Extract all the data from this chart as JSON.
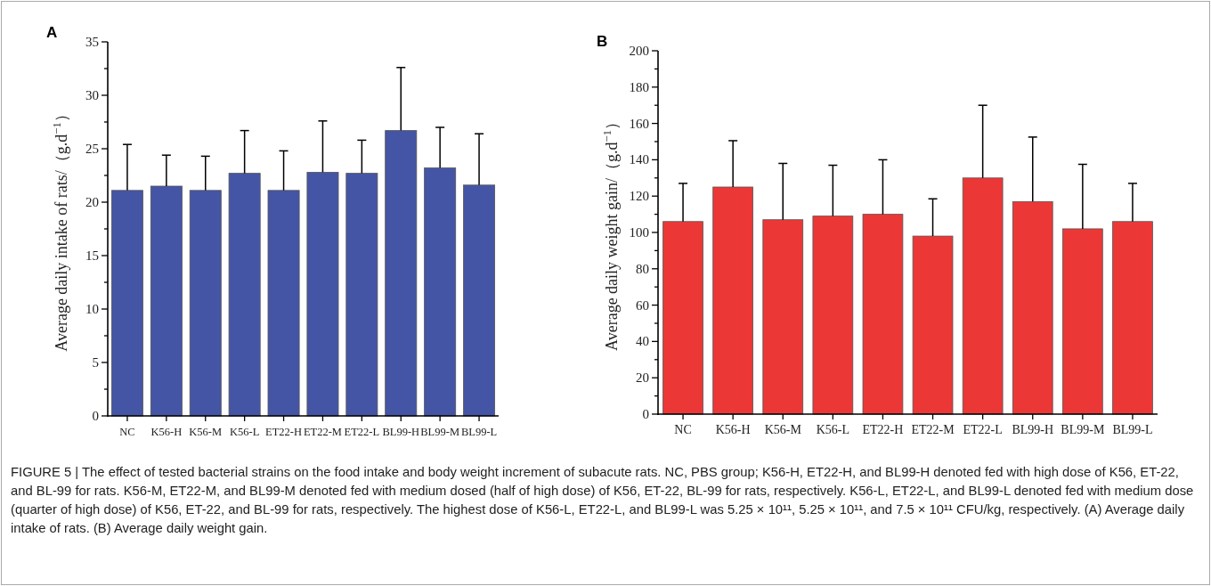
{
  "chart_data": [
    {
      "type": "bar",
      "title": "A",
      "ylabel": "Average daily intake of rats/（g.d$^{−1}$）",
      "categories": [
        "NC",
        "K56-H",
        "K56-M",
        "K56-L",
        "ET22-H",
        "ET22-M",
        "ET22-L",
        "BL99-H",
        "BL99-M",
        "BL99-L"
      ],
      "values": [
        21.1,
        21.5,
        21.1,
        22.7,
        21.1,
        22.8,
        22.7,
        26.7,
        23.2,
        21.6
      ],
      "errors": [
        [
          21.1,
          25.4
        ],
        [
          21.5,
          24.4
        ],
        [
          21.1,
          24.3
        ],
        [
          22.7,
          26.7
        ],
        [
          21.1,
          24.8
        ],
        [
          22.8,
          27.6
        ],
        [
          22.7,
          25.8
        ],
        [
          26.7,
          32.6
        ],
        [
          23.2,
          27.0
        ],
        [
          21.6,
          26.4
        ]
      ],
      "color": "#4555a5",
      "ylim": [
        0,
        35
      ],
      "yticks": [
        0,
        5,
        10,
        15,
        20,
        25,
        30,
        35
      ],
      "grid": false,
      "annotations": [
        "FIGURE 5 | The effect of tested bacterial strains on the food intake and body weight increment of subacute rats. NC, PBS group; K56-H, ET22-H, and BL99-H denoted fed with high dose of K56, ET-22, and BL-99 for rats. K56-M, ET22-M, and BL99-M denoted fed with medium dosed (half of high dose) of K56, ET-22, BL-99 for rats, respectively. K56-L, ET22-L, and BL99-L denoted fed with medium dose (quarter of high dose) of K56, ET-22, and BL-99 for rats, respectively. The highest dose of K56-L, ET22-L, and BL99-L was 5.25 × 10¹¹, 5.25 × 10¹¹, and 7.5 × 10¹¹ CFU/kg, respectively. (A) Average daily intake of rats. (B) Average daily weight gain."
      ]
    },
    {
      "type": "bar",
      "title": "B",
      "ylabel": "Average daily weight gain/（g.d$^{−1}$）",
      "categories": [
        "NC",
        "K56-H",
        "K56-M",
        "K56-L",
        "ET22-H",
        "ET22-M",
        "ET22-L",
        "BL99-H",
        "BL99-M",
        "BL99-L"
      ],
      "values": [
        106,
        125,
        107,
        109,
        110,
        98,
        130,
        117,
        102,
        106
      ],
      "errors": [
        [
          106,
          127
        ],
        [
          125,
          150.5
        ],
        [
          107,
          138
        ],
        [
          109,
          137
        ],
        [
          110,
          140
        ],
        [
          98,
          118.5
        ],
        [
          130,
          170
        ],
        [
          117,
          152.5
        ],
        [
          102,
          137.5
        ],
        [
          106,
          127
        ]
      ],
      "color": "#ec3737",
      "ylim": [
        0,
        200
      ],
      "yticks": [
        0,
        20,
        40,
        60,
        80,
        100,
        120,
        140,
        160,
        180,
        200
      ],
      "grid": false
    }
  ]
}
